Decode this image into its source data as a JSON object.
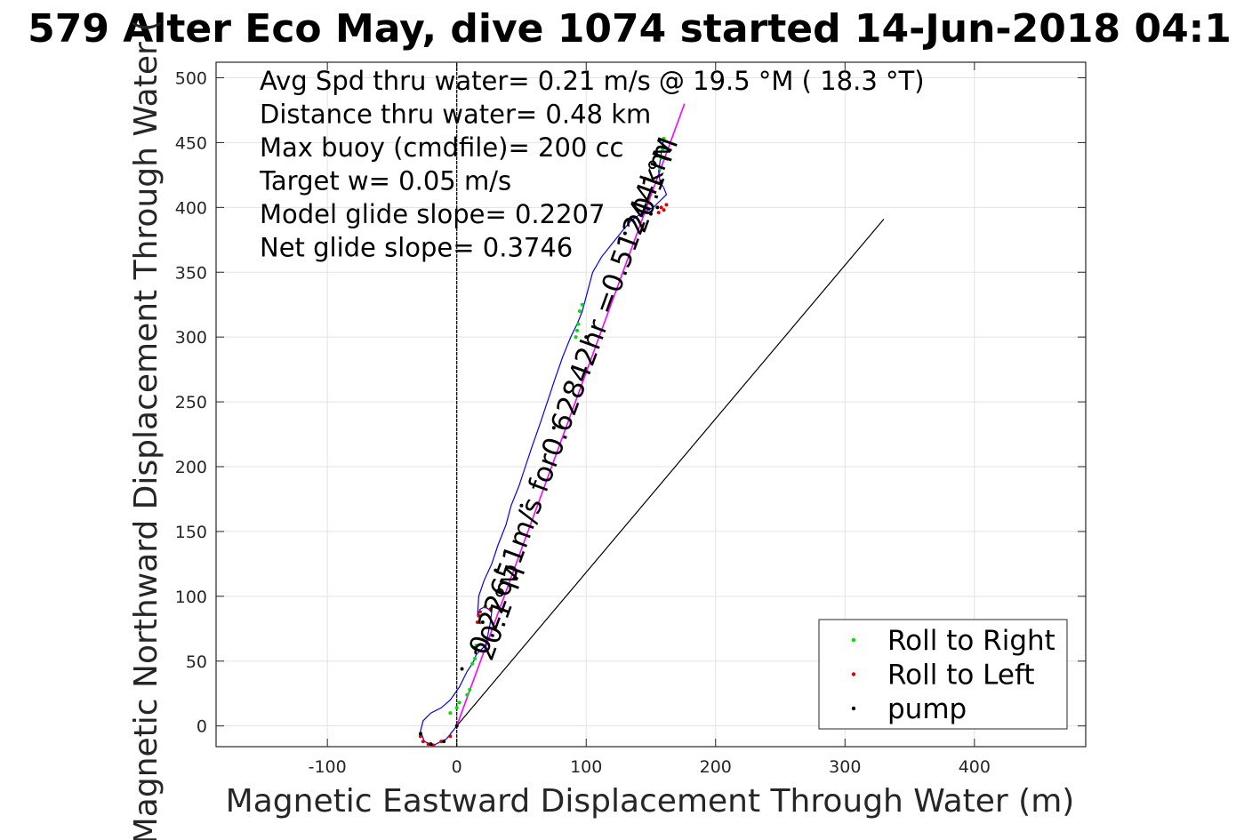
{
  "chart_data": {
    "type": "line",
    "title": "579 Alter Eco May, dive 1074 started 14-Jun-2018 04:1",
    "xlabel": "Magnetic Eastward Displacement Through Water (m)",
    "ylabel": "Magnetic Northward Displacement Through Water (",
    "xlim": [
      -186,
      486
    ],
    "ylim": [
      -16,
      512
    ],
    "xticks": [
      -100,
      0,
      100,
      200,
      300,
      400
    ],
    "xtick_labels": [
      "-100",
      "0",
      "100",
      "200",
      "300",
      "400"
    ],
    "yticks": [
      0,
      50,
      100,
      150,
      200,
      250,
      300,
      350,
      400,
      450,
      500
    ],
    "ytick_labels": [
      "0",
      "50",
      "100",
      "150",
      "200",
      "250",
      "300",
      "350",
      "400",
      "450",
      "500"
    ],
    "grid": true,
    "legend_position": "bottom-right",
    "annotations": [
      "Avg Spd thru water=  0.21 m/s @  19.5 °M ( 18.3 °T)",
      "Distance thru water=  0.48 km",
      "Max buoy (cmdfile)= 200 cc",
      "Target w= 0.05 m/s",
      "Model glide slope= 0.2207",
      "Net glide slope= 0.3746"
    ],
    "rotated_labels": [
      {
        "text": "0.22651m/s for0.62842hr =0.51244km",
        "x": 95,
        "y": 250,
        "angle": -69.9
      },
      {
        "text": "20.1°M",
        "x": 40,
        "y": 85,
        "angle": -69.9
      },
      {
        "text": "20.1°M",
        "x": 158,
        "y": 415,
        "angle": -69.9
      }
    ],
    "track": {
      "color": "#0000ff",
      "x": [
        0,
        -8,
        -18,
        -25,
        -28,
        -26,
        -20,
        -12,
        -5,
        2,
        8,
        12,
        14,
        15,
        18,
        22,
        24,
        26,
        27,
        22,
        18,
        16,
        17,
        21,
        27,
        32,
        38,
        42,
        48,
        53,
        58,
        64,
        70,
        76,
        82,
        88,
        93,
        97,
        101,
        105,
        112,
        120,
        128,
        135,
        142,
        148,
        152,
        157,
        162,
        160,
        157,
        156,
        157,
        158,
        159,
        160
      ],
      "y": [
        0,
        -10,
        -15,
        -12,
        -4,
        4,
        10,
        14,
        20,
        30,
        42,
        48,
        52,
        55,
        58,
        62,
        70,
        80,
        88,
        92,
        90,
        85,
        100,
        112,
        125,
        140,
        155,
        170,
        185,
        200,
        215,
        232,
        250,
        268,
        285,
        300,
        310,
        320,
        335,
        350,
        362,
        372,
        382,
        390,
        395,
        398,
        400,
        405,
        410,
        415,
        420,
        428,
        435,
        442,
        448,
        453
      ]
    },
    "net_line": {
      "color": "#ff00ff",
      "x": [
        0,
        176
      ],
      "y": [
        0,
        480
      ]
    },
    "model_line": {
      "color": "#000000",
      "x": [
        0,
        330
      ],
      "y": [
        0,
        391
      ]
    },
    "north_line": {
      "color": "#000000",
      "x": [
        0,
        0
      ],
      "y": [
        -16,
        512
      ]
    },
    "markers": {
      "right": {
        "color": "#00e000",
        "x": [
          -5,
          0,
          2,
          8,
          10,
          12,
          14,
          15,
          92,
          93,
          94,
          95,
          97,
          157,
          158,
          159,
          160
        ],
        "y": [
          10,
          14,
          18,
          24,
          28,
          48,
          52,
          62,
          300,
          305,
          310,
          320,
          325,
          430,
          438,
          445,
          453
        ]
      },
      "left": {
        "color": "#e00000",
        "x": [
          -28,
          -26,
          -22,
          -18,
          -12,
          -5,
          16,
          17,
          18,
          22,
          26,
          160,
          162,
          156,
          158
        ],
        "y": [
          -8,
          -12,
          -14,
          -15,
          -12,
          -8,
          80,
          85,
          88,
          92,
          90,
          398,
          402,
          396,
          400
        ]
      },
      "pump": {
        "color": "#000000",
        "x": [
          0,
          -10,
          -20,
          -28,
          4,
          14,
          20,
          30,
          50,
          75,
          100,
          130,
          150,
          155,
          158
        ],
        "y": [
          0,
          -12,
          -14,
          -6,
          44,
          60,
          80,
          120,
          170,
          230,
          300,
          380,
          395,
          400,
          420
        ]
      }
    },
    "legend": [
      {
        "label": "Roll to Right",
        "color": "#00e000"
      },
      {
        "label": "Roll to Left",
        "color": "#e00000"
      },
      {
        "label": "pump",
        "color": "#000000"
      }
    ]
  }
}
